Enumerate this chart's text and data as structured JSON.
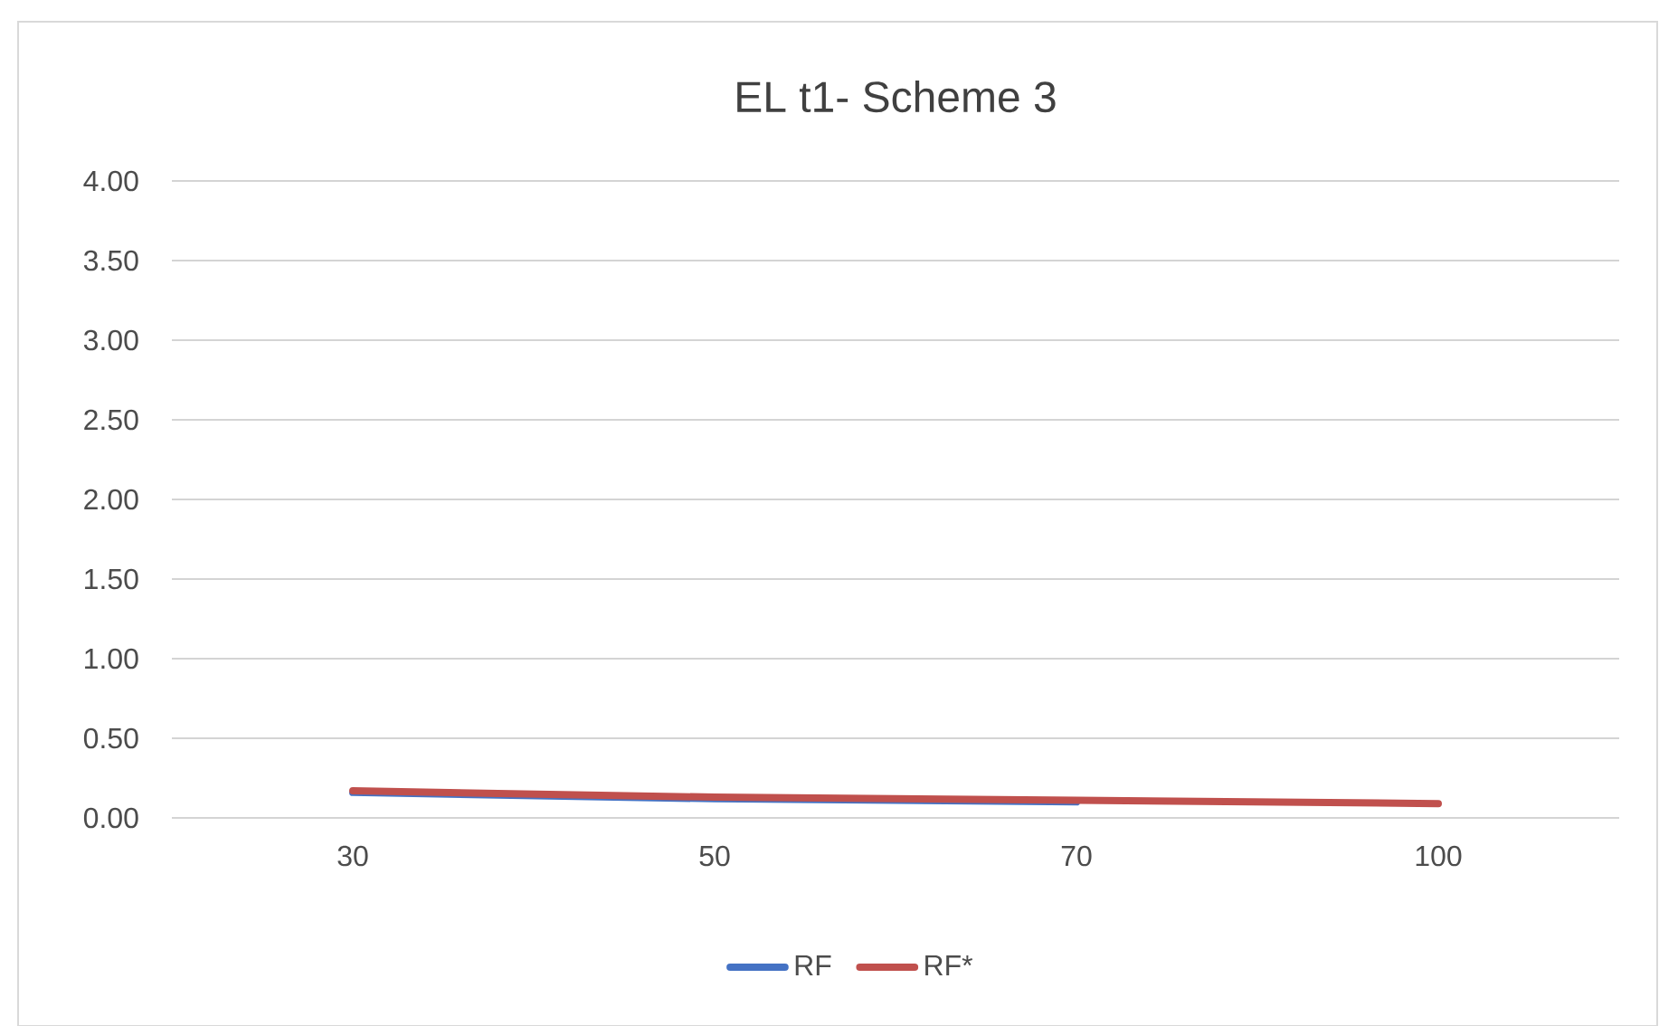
{
  "chart_data": {
    "type": "line",
    "title": "EL t1- Scheme 3",
    "categories": [
      "30",
      "50",
      "70",
      "100"
    ],
    "series": [
      {
        "name": "RF",
        "color": "#4472c4",
        "values": [
          0.16,
          0.12,
          0.1,
          null
        ]
      },
      {
        "name": "RF*",
        "color": "#c0504d",
        "values": [
          0.17,
          0.13,
          0.11,
          0.09
        ]
      }
    ],
    "ylim": [
      0,
      4
    ],
    "yticks": [
      {
        "value": 0,
        "label": "0.00"
      },
      {
        "value": 0.5,
        "label": "0.50"
      },
      {
        "value": 1,
        "label": "1.00"
      },
      {
        "value": 1.5,
        "label": "1.50"
      },
      {
        "value": 2,
        "label": "2.00"
      },
      {
        "value": 2.5,
        "label": "2.50"
      },
      {
        "value": 3,
        "label": "3.00"
      },
      {
        "value": 3.5,
        "label": "3.50"
      },
      {
        "value": 4,
        "label": "4.00"
      }
    ],
    "grid": "y",
    "legend": "bottom"
  }
}
